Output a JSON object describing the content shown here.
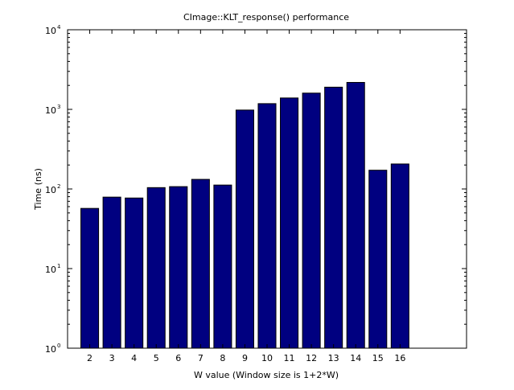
{
  "chart_data": {
    "type": "bar",
    "title": "CImage::KLT_response() performance",
    "xlabel": "W value (Window size is 1+2*W)",
    "ylabel": "Time (ns)",
    "y_scale": "log",
    "ylim": [
      1,
      10000
    ],
    "xlim": [
      0,
      18
    ],
    "y_tick_values": [
      1,
      10,
      100,
      1000,
      10000
    ],
    "y_tick_base": "10",
    "y_tick_exponents": [
      "0",
      "1",
      "2",
      "3",
      "4"
    ],
    "grid": false,
    "bar_color": "#000080",
    "categories": [
      "2",
      "3",
      "4",
      "5",
      "6",
      "7",
      "8",
      "9",
      "10",
      "11",
      "12",
      "13",
      "14",
      "15",
      "16"
    ],
    "values": [
      57,
      79,
      77,
      104,
      107,
      132,
      112,
      980,
      1180,
      1390,
      1600,
      1900,
      2180,
      172,
      206
    ]
  }
}
